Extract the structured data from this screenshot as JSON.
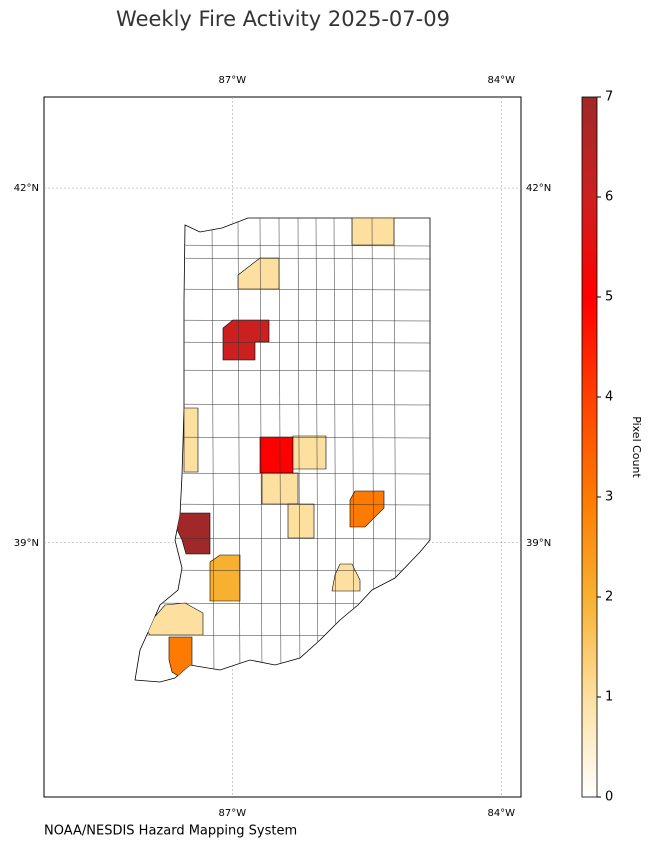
{
  "title": "Weekly Fire Activity 2025-07-09",
  "credit": "NOAA/NESDIS Hazard Mapping System",
  "map": {
    "xlim": [
      -89.1,
      -83.78
    ],
    "ylim": [
      36.85,
      42.77
    ],
    "xticks": [
      {
        "value": -87,
        "label": "87°W"
      },
      {
        "value": -84,
        "label": "84°W"
      }
    ],
    "yticks": [
      {
        "value": 39,
        "label": "39°N"
      },
      {
        "value": 42,
        "label": "42°N"
      }
    ],
    "grid": true
  },
  "colorbar": {
    "label": "Pixel Count",
    "lim": [
      0,
      7
    ],
    "ticks": [
      0,
      1,
      2,
      3,
      4,
      5,
      6,
      7
    ],
    "colors": [
      "#ffffff",
      "#fde0a0",
      "#f8b030",
      "#ff7a00",
      "#ff4000",
      "#ff0000",
      "#cc2020",
      "#a02828"
    ]
  },
  "fire_counties": {
    "values": [
      1,
      1,
      6,
      1,
      5,
      1,
      1,
      1,
      3,
      7,
      2,
      1,
      1,
      3
    ]
  }
}
